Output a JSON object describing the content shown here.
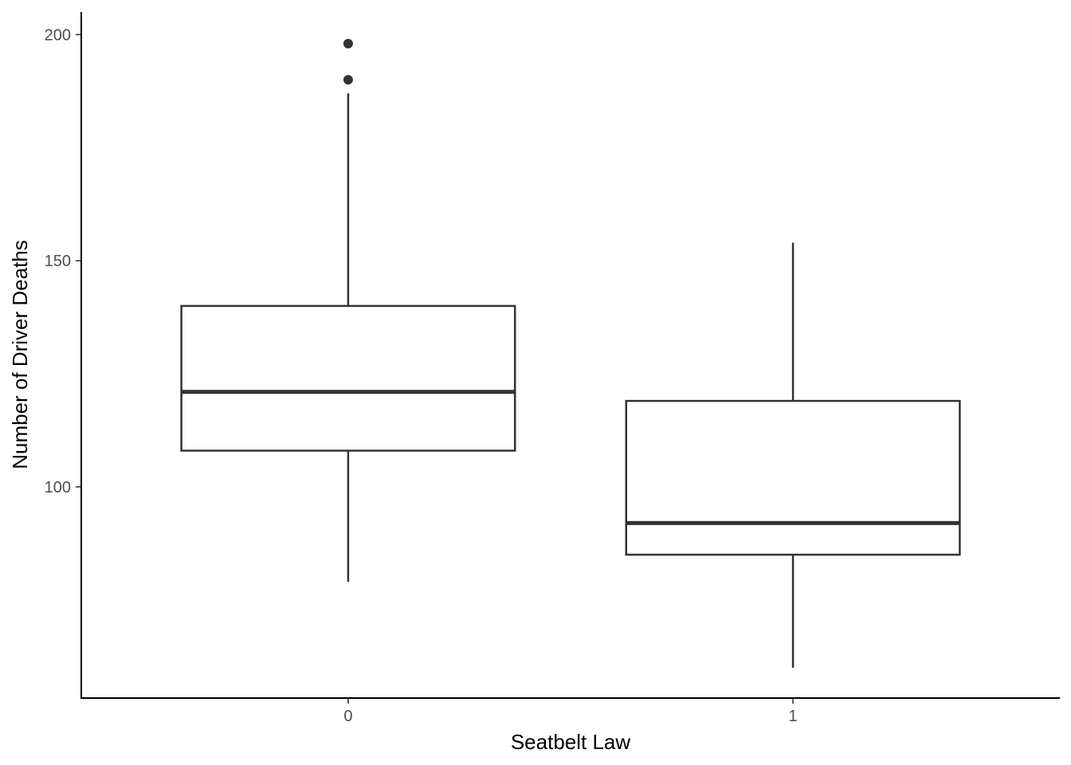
{
  "chart_data": {
    "type": "box",
    "xlabel": "Seatbelt Law",
    "ylabel": "Number of Driver Deaths",
    "categories": [
      "0",
      "1"
    ],
    "yticks": [
      100,
      150,
      200
    ],
    "ylim": [
      53.3,
      205
    ],
    "boxes": [
      {
        "category": "0",
        "whisker_low": 79,
        "q1": 108,
        "median": 121,
        "q3": 140,
        "whisker_high": 187,
        "outliers": [
          190,
          198
        ]
      },
      {
        "category": "1",
        "whisker_low": 60,
        "q1": 85,
        "median": 92,
        "q3": 119,
        "whisker_high": 154,
        "outliers": []
      }
    ],
    "grid": false,
    "legend": "none",
    "colors": {
      "line": "#333333",
      "fill": "#ffffff",
      "axis": "#000000",
      "tick_label": "#4d4d4d"
    }
  }
}
